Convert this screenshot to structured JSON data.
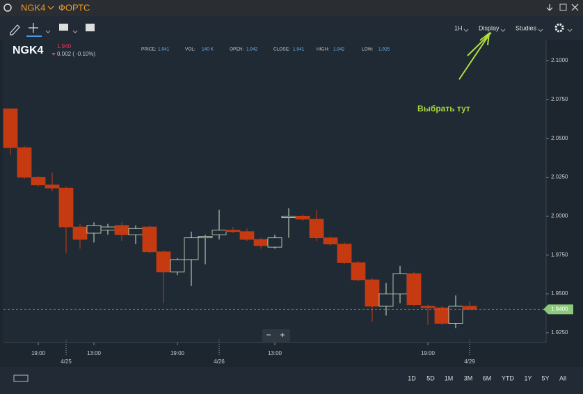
{
  "window": {
    "symbol": "NGK4",
    "exchange": "ФОРТС"
  },
  "toolbar": [
    "1H",
    "Display",
    "Studies"
  ],
  "header": {
    "symbol": "NGK4",
    "last": "1.940",
    "change": "0.002 ( -0.10%)",
    "stats": [
      {
        "label": "PRICE:",
        "value": "1.941"
      },
      {
        "label": "VOL:",
        "value": "140 K"
      },
      {
        "label": "OPEN:",
        "value": "1.942"
      },
      {
        "label": "CLOSE:",
        "value": "1.941"
      },
      {
        "label": "HIGH:",
        "value": "1.942"
      },
      {
        "label": "LOW:",
        "value": "1.925"
      }
    ]
  },
  "annotation": "Выбрать тут",
  "zoom": [
    "−",
    "+"
  ],
  "ranges": [
    "1D",
    "5D",
    "1M",
    "3M",
    "6M",
    "YTD",
    "1Y",
    "5Y",
    "All"
  ],
  "chart_data": {
    "type": "candlestick",
    "categories": [
      null,
      null,
      "19:00",
      null,
      null,
      null,
      "13:00",
      null,
      null,
      null,
      null,
      null,
      "19:00",
      null,
      null,
      null,
      null,
      null,
      null,
      "13:00",
      null,
      null,
      null,
      null,
      null,
      null,
      null,
      null,
      null,
      null,
      "19:00",
      null,
      null,
      null
    ],
    "dates": [
      null,
      null,
      null,
      null,
      "4/25",
      null,
      null,
      null,
      null,
      null,
      null,
      null,
      null,
      null,
      null,
      "4/26",
      null,
      null,
      null,
      null,
      null,
      null,
      null,
      null,
      null,
      null,
      null,
      null,
      null,
      null,
      null,
      null,
      null,
      "4/29"
    ],
    "open": [
      2.069,
      2.044,
      2.025,
      2.02,
      2.018,
      1.993,
      1.989,
      1.991,
      1.994,
      1.988,
      1.993,
      1.977,
      1.964,
      1.972,
      1.986,
      1.988,
      1.991,
      1.99,
      1.985,
      1.98,
      1.999,
      2.0,
      1.998,
      1.986,
      1.982,
      1.97,
      1.959,
      1.942,
      1.95,
      1.963,
      1.942,
      1.941,
      1.931,
      1.942
    ],
    "high": [
      2.069,
      2.045,
      2.026,
      2.028,
      2.019,
      1.995,
      1.996,
      1.995,
      1.996,
      1.994,
      1.994,
      1.978,
      1.973,
      1.99,
      1.988,
      2.004,
      1.993,
      1.992,
      1.986,
      1.988,
      2.005,
      2.001,
      2.004,
      1.987,
      1.983,
      1.971,
      1.96,
      1.957,
      1.968,
      1.964,
      1.943,
      1.942,
      1.949,
      1.945
    ],
    "low": [
      2.039,
      2.024,
      2.019,
      2.016,
      1.976,
      1.979,
      1.983,
      1.988,
      1.984,
      1.982,
      1.976,
      1.944,
      1.962,
      1.955,
      1.969,
      1.985,
      1.989,
      1.984,
      1.979,
      1.979,
      1.986,
      1.997,
      1.984,
      1.981,
      1.969,
      1.958,
      1.932,
      1.936,
      1.944,
      1.942,
      1.93,
      1.93,
      1.928,
      1.94
    ],
    "close": [
      2.044,
      2.025,
      2.02,
      2.018,
      1.993,
      1.985,
      1.994,
      1.993,
      1.988,
      1.992,
      1.977,
      1.964,
      1.972,
      1.986,
      1.987,
      1.991,
      1.99,
      1.985,
      1.981,
      1.986,
      2.0,
      1.998,
      1.986,
      1.982,
      1.97,
      1.959,
      1.942,
      1.95,
      1.963,
      1.943,
      1.941,
      1.931,
      1.942,
      1.94
    ],
    "up_color": "#cfe6c4",
    "down_color": "#c63a12",
    "ylim": [
      1.9187,
      2.113
    ],
    "yticks": [
      {
        "value": 1.925,
        "label": "1.9250"
      },
      {
        "value": 1.95,
        "label": "1.9500"
      },
      {
        "value": 1.975,
        "label": "1.9750"
      },
      {
        "value": 2.0,
        "label": "2.0000"
      },
      {
        "value": 2.025,
        "label": "2.0250"
      },
      {
        "value": 2.05,
        "label": "2.0500"
      },
      {
        "value": 2.075,
        "label": "2.0750"
      },
      {
        "value": 2.1,
        "label": "2.1000"
      }
    ],
    "current": {
      "value": 1.94,
      "label": "1.9400"
    }
  }
}
